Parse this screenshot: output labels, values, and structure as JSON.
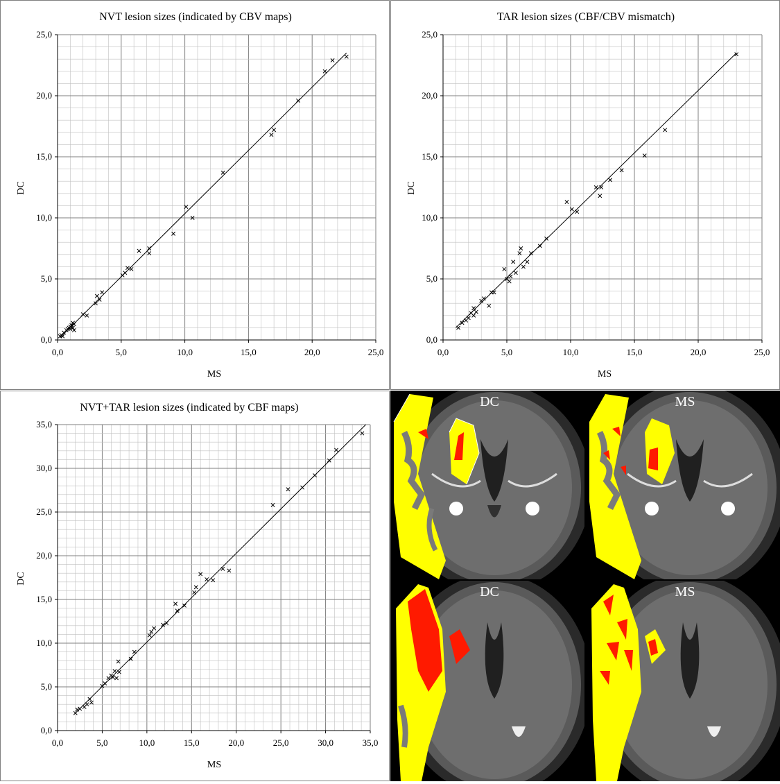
{
  "chart_data": [
    {
      "type": "scatter",
      "title": "NVT lesion sizes (indicated by CBV maps)",
      "xlabel": "MS",
      "ylabel": "DC",
      "xlim": [
        0,
        25
      ],
      "ylim": [
        0,
        25
      ],
      "xticks": [
        "0,0",
        "5,0",
        "10,0",
        "15,0",
        "20,0",
        "25,0"
      ],
      "yticks": [
        "0,0",
        "5,0",
        "10,0",
        "15,0",
        "20,0",
        "25,0"
      ],
      "grid": true,
      "trendline": {
        "x": [
          0.2,
          22.7
        ],
        "y": [
          0.2,
          23.5
        ]
      },
      "x": [
        0.2,
        0.3,
        0.4,
        0.5,
        0.7,
        0.8,
        0.9,
        1.0,
        1.1,
        1.2,
        1.3,
        1.0,
        1.2,
        1.3,
        2.0,
        2.3,
        3.0,
        3.1,
        3.3,
        3.5,
        5.1,
        5.3,
        5.5,
        5.8,
        6.4,
        7.2,
        7.2,
        9.1,
        10.1,
        10.6,
        13.0,
        16.8,
        17.0,
        18.9,
        21.0,
        21.6,
        22.7
      ],
      "y": [
        0.3,
        0.4,
        0.3,
        0.6,
        0.8,
        0.9,
        1.0,
        1.1,
        1.2,
        1.4,
        1.3,
        0.9,
        1.0,
        0.8,
        2.1,
        2.0,
        3.0,
        3.6,
        3.3,
        3.9,
        5.3,
        5.5,
        5.9,
        5.8,
        7.3,
        7.1,
        7.5,
        8.7,
        10.9,
        10.0,
        13.7,
        16.8,
        17.2,
        19.6,
        22.0,
        22.9,
        23.2
      ]
    },
    {
      "type": "scatter",
      "title": "TAR lesion sizes (CBF/CBV mismatch)",
      "xlabel": "MS",
      "ylabel": "DC",
      "xlim": [
        0,
        25
      ],
      "ylim": [
        0,
        25
      ],
      "xticks": [
        "0,0",
        "5,0",
        "10,0",
        "15,0",
        "20,0",
        "25,0"
      ],
      "yticks": [
        "0,0",
        "5,0",
        "10,0",
        "15,0",
        "20,0",
        "25,0"
      ],
      "grid": true,
      "trendline": {
        "x": [
          1.0,
          23.0
        ],
        "y": [
          1.0,
          23.5
        ]
      },
      "x": [
        1.2,
        1.5,
        1.8,
        2.0,
        2.2,
        2.4,
        2.4,
        2.6,
        3.0,
        3.2,
        3.6,
        3.8,
        4.0,
        4.8,
        5.0,
        5.2,
        5.3,
        5.5,
        5.7,
        6.0,
        6.1,
        6.3,
        6.6,
        6.9,
        7.6,
        8.1,
        9.7,
        10.1,
        10.5,
        12.0,
        12.3,
        12.4,
        13.1,
        14.0,
        15.8,
        17.4,
        23.0
      ],
      "y": [
        1.0,
        1.4,
        1.6,
        1.8,
        2.2,
        2.0,
        2.6,
        2.3,
        3.2,
        3.4,
        2.8,
        3.9,
        3.9,
        5.8,
        5.0,
        4.8,
        5.2,
        6.4,
        5.5,
        7.1,
        7.5,
        6.0,
        6.4,
        7.1,
        7.7,
        8.3,
        11.3,
        10.7,
        10.5,
        12.5,
        11.8,
        12.5,
        13.1,
        13.9,
        15.1,
        17.2,
        23.4
      ]
    },
    {
      "type": "scatter",
      "title": "NVT+TAR lesion sizes (indicated by CBF maps)",
      "xlabel": "MS",
      "ylabel": "DC",
      "xlim": [
        0,
        35
      ],
      "ylim": [
        0,
        35
      ],
      "xticks": [
        "0,0",
        "5,0",
        "10,0",
        "15,0",
        "20,0",
        "25,0",
        "30,0",
        "35,0"
      ],
      "yticks": [
        "0,0",
        "5,0",
        "10,0",
        "15,0",
        "20,0",
        "25,0",
        "30,0",
        "35,0"
      ],
      "grid": true,
      "trendline": {
        "x": [
          2.0,
          34.5
        ],
        "y": [
          2.0,
          35.0
        ]
      },
      "x": [
        2.0,
        2.2,
        2.5,
        3.0,
        3.3,
        3.6,
        3.8,
        5.0,
        5.3,
        5.7,
        6.0,
        6.2,
        6.4,
        6.6,
        6.8,
        6.9,
        8.2,
        8.6,
        10.3,
        10.5,
        10.8,
        11.8,
        12.2,
        13.2,
        13.4,
        14.2,
        15.3,
        15.5,
        16.0,
        16.7,
        17.4,
        18.5,
        19.2,
        24.1,
        25.8,
        27.4,
        28.8,
        30.4,
        31.2,
        34.1
      ],
      "y": [
        2.0,
        2.4,
        2.5,
        2.7,
        3.0,
        3.6,
        3.2,
        5.1,
        5.4,
        6.0,
        6.3,
        6.1,
        6.8,
        6.0,
        7.9,
        6.7,
        8.2,
        9.0,
        10.9,
        11.3,
        11.7,
        12.1,
        12.3,
        14.5,
        13.7,
        14.3,
        15.8,
        16.4,
        17.9,
        17.3,
        17.2,
        18.5,
        18.3,
        25.8,
        27.6,
        27.8,
        29.2,
        30.9,
        32.1,
        34.0
      ]
    }
  ],
  "images": [
    {
      "label": "DC"
    },
    {
      "label": "MS"
    },
    {
      "label": "DC"
    },
    {
      "label": "MS"
    }
  ],
  "colors": {
    "overlay_yellow": "#ffff00",
    "overlay_red": "#ff1a00",
    "grid_major": "#7f7f7f",
    "grid_minor": "#c0c0c0"
  }
}
